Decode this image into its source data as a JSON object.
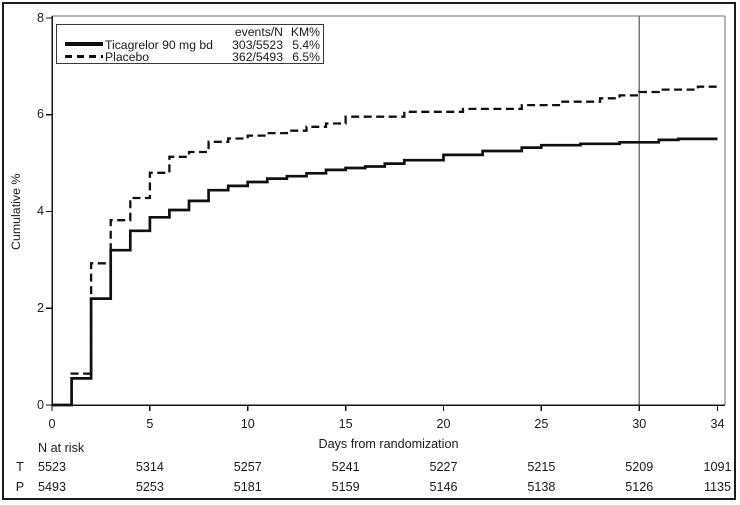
{
  "chart_data": {
    "type": "line",
    "subtype": "kaplan-meier-step",
    "title": "",
    "xlabel": "Days from randomization",
    "ylabel": "Cumulative %",
    "xlim": [
      0,
      34
    ],
    "ylim": [
      0,
      8
    ],
    "x_ticks": [
      0,
      5,
      10,
      15,
      20,
      25,
      30,
      34
    ],
    "y_ticks": [
      0,
      2,
      4,
      6,
      8
    ],
    "grid": false,
    "legend_position": "top-left",
    "legend_columns": [
      "events/N",
      "KM%"
    ],
    "reference_line_x": 30,
    "series": [
      {
        "name": "Ticagrelor 90 mg bd",
        "line_style": "solid",
        "color": "#101010",
        "events_n": "303/5523",
        "km_pct": "5.4%",
        "steps": [
          [
            0,
            0
          ],
          [
            1,
            0.55
          ],
          [
            2,
            2.2
          ],
          [
            3,
            3.2
          ],
          [
            4,
            3.6
          ],
          [
            5,
            3.88
          ],
          [
            6,
            4.03
          ],
          [
            7,
            4.22
          ],
          [
            8,
            4.44
          ],
          [
            9,
            4.53
          ],
          [
            10,
            4.61
          ],
          [
            11,
            4.68
          ],
          [
            12,
            4.73
          ],
          [
            13,
            4.79
          ],
          [
            14,
            4.86
          ],
          [
            15,
            4.9
          ],
          [
            16,
            4.93
          ],
          [
            17,
            4.99
          ],
          [
            18,
            5.06
          ],
          [
            20,
            5.17
          ],
          [
            22,
            5.25
          ],
          [
            24,
            5.32
          ],
          [
            25,
            5.37
          ],
          [
            27,
            5.4
          ],
          [
            29,
            5.43
          ],
          [
            31,
            5.48
          ],
          [
            32,
            5.5
          ],
          [
            34,
            5.5
          ]
        ]
      },
      {
        "name": "Placebo",
        "line_style": "dashed",
        "color": "#101010",
        "events_n": "362/5493",
        "km_pct": "6.5%",
        "steps": [
          [
            0,
            0
          ],
          [
            1,
            0.65
          ],
          [
            2,
            2.93
          ],
          [
            3,
            3.82
          ],
          [
            4,
            4.28
          ],
          [
            5,
            4.8
          ],
          [
            6,
            5.13
          ],
          [
            7,
            5.23
          ],
          [
            8,
            5.44
          ],
          [
            9,
            5.51
          ],
          [
            10,
            5.57
          ],
          [
            11,
            5.62
          ],
          [
            12,
            5.67
          ],
          [
            13,
            5.75
          ],
          [
            14,
            5.82
          ],
          [
            15,
            5.96
          ],
          [
            18,
            6.06
          ],
          [
            21,
            6.12
          ],
          [
            24,
            6.2
          ],
          [
            26,
            6.27
          ],
          [
            28,
            6.34
          ],
          [
            29,
            6.4
          ],
          [
            30,
            6.47
          ],
          [
            31,
            6.52
          ],
          [
            33,
            6.58
          ],
          [
            34,
            6.62
          ]
        ]
      }
    ],
    "at_risk": {
      "label": "N at risk",
      "days": [
        0,
        5,
        10,
        15,
        20,
        25,
        30,
        34
      ],
      "rows": [
        {
          "label": "T",
          "counts": [
            5523,
            5314,
            5257,
            5241,
            5227,
            5215,
            5209,
            1091
          ]
        },
        {
          "label": "P",
          "counts": [
            5493,
            5253,
            5181,
            5159,
            5146,
            5138,
            5126,
            1135
          ]
        }
      ]
    },
    "colors": {
      "line": "#101010",
      "frame": "#6e6e6e",
      "reference_line": "#787878",
      "text": "#1a1a1a",
      "background": "#ffffff"
    }
  }
}
